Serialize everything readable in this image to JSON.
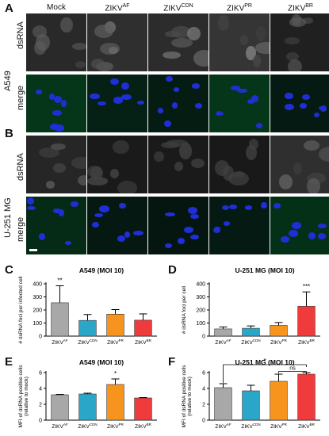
{
  "panels": {
    "A": "A",
    "B": "B",
    "C": "C",
    "D": "D",
    "E": "E",
    "F": "F"
  },
  "micrograph": {
    "columns": [
      {
        "base": "Mock",
        "sup": ""
      },
      {
        "base": "ZIKV",
        "sup": "AF"
      },
      {
        "base": "ZIKV",
        "sup": "CDN"
      },
      {
        "base": "ZIKV",
        "sup": "PR"
      },
      {
        "base": "ZIKV",
        "sup": "BR"
      }
    ],
    "cell_lines": [
      "A549",
      "U-251 MG"
    ],
    "channels": [
      "dsRNA",
      "merge"
    ]
  },
  "colors": {
    "AF": "#a8a8a8",
    "CDN": "#2aa6c9",
    "PR": "#f7941d",
    "BR": "#ef3b3b",
    "dsRNA": "#bdbdbd",
    "merge_green": "#2f8f3a",
    "nuclei": "#1f2fd6"
  },
  "chart_data": [
    {
      "panel": "C",
      "type": "bar",
      "title": "A549 (MOI 10)",
      "ylabel": "# dsRNA foci per infected cell",
      "categories": [
        "ZIKVAF",
        "ZIKVCDN",
        "ZIKVPR",
        "ZIKVBR"
      ],
      "category_labels": [
        {
          "base": "ZIKV",
          "sup": "AF"
        },
        {
          "base": "ZIKV",
          "sup": "CDN"
        },
        {
          "base": "ZIKV",
          "sup": "PR"
        },
        {
          "base": "ZIKV",
          "sup": "BR"
        }
      ],
      "values": [
        255,
        120,
        168,
        122
      ],
      "errors": [
        130,
        45,
        35,
        48
      ],
      "ylim": [
        0,
        400
      ],
      "yticks": [
        0,
        100,
        200,
        300,
        400
      ],
      "annotations": [
        {
          "category": "ZIKVAF",
          "text": "**"
        }
      ]
    },
    {
      "panel": "D",
      "type": "bar",
      "title": "U-251 MG (MOI 10)",
      "ylabel": "# dsRNA foci per cell",
      "categories": [
        "ZIKVAF",
        "ZIKVCDN",
        "ZIKVPR",
        "ZIKVBR"
      ],
      "category_labels": [
        {
          "base": "ZIKV",
          "sup": "AF"
        },
        {
          "base": "ZIKV",
          "sup": "CDN"
        },
        {
          "base": "ZIKV",
          "sup": "PR"
        },
        {
          "base": "ZIKV",
          "sup": "BR"
        }
      ],
      "values": [
        55,
        60,
        82,
        228
      ],
      "errors": [
        15,
        18,
        22,
        110
      ],
      "ylim": [
        0,
        400
      ],
      "yticks": [
        0,
        100,
        200,
        300,
        400
      ],
      "annotations": [
        {
          "category": "ZIKVBR",
          "text": "***"
        }
      ]
    },
    {
      "panel": "E",
      "type": "bar",
      "title": "A549 (MOI 10)",
      "ylabel": "MFI of dsRNA positive cells (relative to mock)",
      "categories": [
        "ZIKVAF",
        "ZIKVCDN",
        "ZIKVPR",
        "ZIKVBR"
      ],
      "category_labels": [
        {
          "base": "ZIKV",
          "sup": "AF"
        },
        {
          "base": "ZIKV",
          "sup": "CDN"
        },
        {
          "base": "ZIKV",
          "sup": "PR"
        },
        {
          "base": "ZIKV",
          "sup": "BR"
        }
      ],
      "values": [
        3.2,
        3.3,
        4.5,
        2.8
      ],
      "errors": [
        0.05,
        0.1,
        0.7,
        0.05
      ],
      "ylim": [
        0,
        6
      ],
      "yticks": [
        0,
        2,
        4,
        6
      ],
      "annotations": [
        {
          "category": "ZIKVPR",
          "text": "*"
        }
      ]
    },
    {
      "panel": "F",
      "type": "bar",
      "title": "U-251 MG (MOI 10)",
      "ylabel": "MFI of dsRNA positive cells (relative to mock)",
      "categories": [
        "ZIKVAF",
        "ZIKVCDN",
        "ZIKVPR",
        "ZIKVBR"
      ],
      "category_labels": [
        {
          "base": "ZIKV",
          "sup": "AF"
        },
        {
          "base": "ZIKV",
          "sup": "CDN"
        },
        {
          "base": "ZIKV",
          "sup": "PR"
        },
        {
          "base": "ZIKV",
          "sup": "BR"
        }
      ],
      "values": [
        4.1,
        3.7,
        4.9,
        5.8
      ],
      "errors": [
        0.5,
        0.7,
        0.9,
        0.2
      ],
      "ylim": [
        0,
        6
      ],
      "yticks": [
        0,
        2,
        4,
        6
      ],
      "annotations": [
        {
          "text": "*",
          "from": "ZIKVAF",
          "to": "ZIKVBR"
        },
        {
          "text": "ns",
          "from": "ZIKVPR",
          "to": "ZIKVBR"
        }
      ]
    }
  ]
}
